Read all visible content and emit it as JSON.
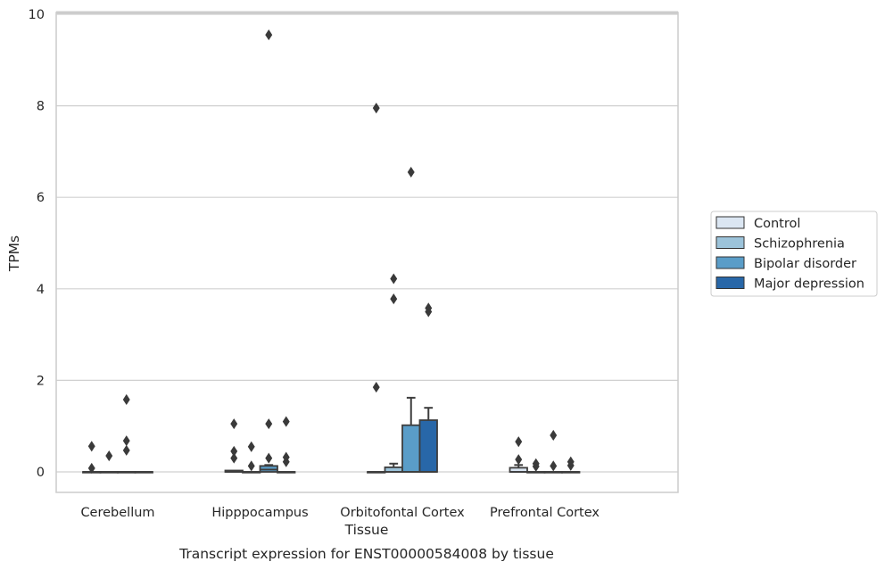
{
  "chart_data": {
    "type": "box",
    "title": "Transcript expression for ENST00000584008 by tissue",
    "xlabel": "Tissue",
    "ylabel": "TPMs",
    "ylim": [
      -0.45,
      10.1
    ],
    "yticks": [
      "0",
      "2",
      "4",
      "6",
      "8",
      "10"
    ],
    "categories": [
      "Cerebellum",
      "Hipppocampus",
      "Orbitofontal Cortex",
      "Prefrontal Cortex"
    ],
    "grid": "horizontal",
    "legend_position": "right",
    "series": [
      {
        "name": "Control",
        "color": "#dbe6f2",
        "boxes": [
          {
            "q1": 0,
            "median": 0,
            "q3": 0,
            "whisker_low": 0,
            "whisker_high": 0,
            "outliers": [
              0.08,
              0.56
            ]
          },
          {
            "q1": 0,
            "median": 0,
            "q3": 0.03,
            "whisker_low": 0,
            "whisker_high": 0.03,
            "outliers": [
              0.3,
              0.45,
              1.05
            ]
          },
          {
            "q1": 0,
            "median": 0,
            "q3": 0,
            "whisker_low": 0,
            "whisker_high": 0,
            "outliers": [
              1.85,
              7.95
            ]
          },
          {
            "q1": 0,
            "median": 0,
            "q3": 0.09,
            "whisker_low": 0,
            "whisker_high": 0.15,
            "outliers": [
              0.27,
              0.66
            ]
          }
        ]
      },
      {
        "name": "Schizophrenia",
        "color": "#9cc3da",
        "boxes": [
          {
            "q1": 0,
            "median": 0,
            "q3": 0,
            "whisker_low": 0,
            "whisker_high": 0,
            "outliers": [
              0.35
            ]
          },
          {
            "q1": 0,
            "median": 0,
            "q3": 0,
            "whisker_low": 0,
            "whisker_high": 0,
            "outliers": [
              0.13,
              0.55
            ]
          },
          {
            "q1": 0,
            "median": 0,
            "q3": 0.1,
            "whisker_low": 0,
            "whisker_high": 0.18,
            "outliers": [
              3.78,
              4.22
            ]
          },
          {
            "q1": 0,
            "median": 0,
            "q3": 0,
            "whisker_low": 0,
            "whisker_high": 0,
            "outliers": [
              0.12,
              0.18
            ]
          }
        ]
      },
      {
        "name": "Bipolar disorder",
        "color": "#5a9dc8",
        "boxes": [
          {
            "q1": 0,
            "median": 0,
            "q3": 0,
            "whisker_low": 0,
            "whisker_high": 0,
            "outliers": [
              0.47,
              0.68,
              1.58
            ]
          },
          {
            "q1": 0,
            "median": 0.05,
            "q3": 0.13,
            "whisker_low": 0,
            "whisker_high": 0.15,
            "outliers": [
              0.3,
              1.05,
              9.55
            ]
          },
          {
            "q1": 0,
            "median": 0,
            "q3": 1.02,
            "whisker_low": 0,
            "whisker_high": 1.62,
            "outliers": [
              6.55
            ]
          },
          {
            "q1": 0,
            "median": 0,
            "q3": 0,
            "whisker_low": 0,
            "whisker_high": 0,
            "outliers": [
              0.13,
              0.8
            ]
          }
        ]
      },
      {
        "name": "Major depression",
        "color": "#2867a8",
        "boxes": [
          {
            "q1": 0,
            "median": 0,
            "q3": 0,
            "whisker_low": 0,
            "whisker_high": 0,
            "outliers": []
          },
          {
            "q1": 0,
            "median": 0,
            "q3": 0,
            "whisker_low": 0,
            "whisker_high": 0,
            "outliers": [
              0.22,
              0.32,
              1.1
            ]
          },
          {
            "q1": 0,
            "median": 0,
            "q3": 1.13,
            "whisker_low": 0,
            "whisker_high": 1.4,
            "outliers": [
              3.5,
              3.58
            ]
          },
          {
            "q1": 0,
            "median": 0,
            "q3": 0,
            "whisker_low": 0,
            "whisker_high": 0,
            "outliers": [
              0.14,
              0.22
            ]
          }
        ]
      }
    ]
  }
}
